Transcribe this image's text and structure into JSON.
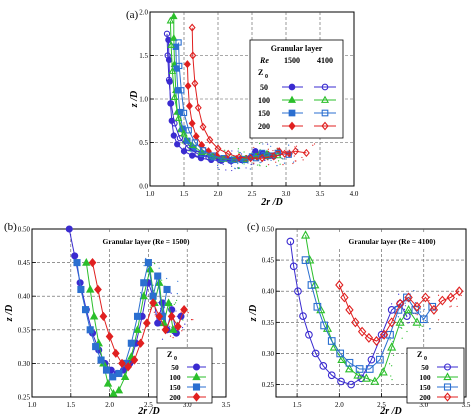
{
  "chart_data": [
    {
      "panel": "(a)",
      "type": "line",
      "xlabel": "2r /D",
      "ylabel": "z /D",
      "xlim": [
        1.0,
        4.0
      ],
      "ylim": [
        0.0,
        2.0
      ],
      "xticks": [
        "1.0",
        "1.5",
        "2.0",
        "2.5",
        "3.0",
        "3.5",
        "4.0"
      ],
      "yticks": [
        "0.0",
        "0.5",
        "1.0",
        "1.5",
        "2.0"
      ],
      "grid": true,
      "legend": {
        "placement": "top-right",
        "title": "Granular layer",
        "header_re": "Re",
        "col1": "1500",
        "col2": "4100",
        "header_z": "Z",
        "header_z_sub": "0",
        "rows": [
          "50",
          "100",
          "150",
          "200"
        ]
      },
      "series": [
        {
          "name": "50",
          "group": "1500",
          "color": "#3a2bd0",
          "marker": "circle",
          "filled": true,
          "x": [
            1.27,
            1.28,
            1.29,
            1.3,
            1.32,
            1.35,
            1.4,
            1.5,
            1.62,
            1.75,
            1.9,
            2.05,
            2.2,
            2.35,
            2.48,
            2.55,
            2.65
          ],
          "y": [
            1.68,
            1.45,
            1.2,
            0.95,
            0.75,
            0.58,
            0.48,
            0.4,
            0.35,
            0.32,
            0.3,
            0.29,
            0.29,
            0.3,
            0.33,
            0.4,
            0.36
          ]
        },
        {
          "name": "100",
          "group": "1500",
          "color": "#2bbf2b",
          "marker": "triangle",
          "filled": true,
          "x": [
            1.35,
            1.35,
            1.36,
            1.38,
            1.4,
            1.45,
            1.52,
            1.62,
            1.75,
            1.9,
            2.05,
            2.2,
            2.35,
            2.5,
            2.62,
            2.72
          ],
          "y": [
            1.95,
            1.7,
            1.4,
            1.1,
            0.85,
            0.65,
            0.52,
            0.43,
            0.37,
            0.33,
            0.31,
            0.3,
            0.31,
            0.34,
            0.38,
            0.34
          ]
        },
        {
          "name": "150",
          "group": "1500",
          "color": "#2b6fd0",
          "marker": "square",
          "filled": true,
          "x": [
            1.38,
            1.39,
            1.41,
            1.44,
            1.48,
            1.55,
            1.64,
            1.76,
            1.9,
            2.05,
            2.2,
            2.35,
            2.5,
            2.65,
            2.8
          ],
          "y": [
            1.6,
            1.35,
            1.1,
            0.85,
            0.66,
            0.52,
            0.43,
            0.37,
            0.33,
            0.31,
            0.3,
            0.31,
            0.34,
            0.38,
            0.35
          ]
        },
        {
          "name": "200",
          "group": "1500",
          "color": "#e02020",
          "marker": "diamond",
          "filled": true,
          "x": [
            1.55,
            1.56,
            1.58,
            1.62,
            1.68,
            1.76,
            1.86,
            1.98,
            2.12,
            2.27,
            2.42,
            2.58,
            2.74,
            2.9,
            3.05
          ],
          "y": [
            1.4,
            1.15,
            0.92,
            0.72,
            0.57,
            0.47,
            0.4,
            0.35,
            0.32,
            0.31,
            0.31,
            0.33,
            0.36,
            0.4,
            0.37
          ]
        },
        {
          "name": "50",
          "group": "4100",
          "color": "#3a2bd0",
          "marker": "circle",
          "filled": false,
          "x": [
            1.25,
            1.26,
            1.28,
            1.31,
            1.36,
            1.44,
            1.56,
            1.7,
            1.86,
            2.02,
            2.18,
            2.34,
            2.5,
            2.66,
            2.82
          ],
          "y": [
            1.75,
            1.5,
            1.22,
            0.95,
            0.72,
            0.55,
            0.44,
            0.37,
            0.33,
            0.3,
            0.29,
            0.3,
            0.33,
            0.37,
            0.34
          ]
        },
        {
          "name": "100",
          "group": "4100",
          "color": "#2bbf2b",
          "marker": "triangle",
          "filled": false,
          "x": [
            1.3,
            1.31,
            1.33,
            1.36,
            1.42,
            1.5,
            1.62,
            1.76,
            1.92,
            2.08,
            2.24,
            2.4,
            2.56,
            2.72,
            2.88
          ],
          "y": [
            1.9,
            1.62,
            1.32,
            1.02,
            0.78,
            0.6,
            0.47,
            0.39,
            0.34,
            0.31,
            0.3,
            0.31,
            0.34,
            0.37,
            0.35
          ]
        },
        {
          "name": "150",
          "group": "4100",
          "color": "#2b6fd0",
          "marker": "square",
          "filled": false,
          "x": [
            1.42,
            1.43,
            1.46,
            1.5,
            1.57,
            1.66,
            1.78,
            1.92,
            2.08,
            2.24,
            2.4,
            2.56,
            2.72,
            2.88,
            3.04
          ],
          "y": [
            1.65,
            1.38,
            1.1,
            0.84,
            0.64,
            0.5,
            0.41,
            0.35,
            0.32,
            0.3,
            0.3,
            0.32,
            0.35,
            0.38,
            0.36
          ]
        },
        {
          "name": "200",
          "group": "4100",
          "color": "#e02020",
          "marker": "diamond",
          "filled": false,
          "x": [
            1.62,
            1.63,
            1.66,
            1.71,
            1.78,
            1.88,
            2.0,
            2.15,
            2.31,
            2.48,
            2.65,
            2.82,
            2.98,
            3.14,
            3.3
          ],
          "y": [
            1.82,
            1.5,
            1.18,
            0.9,
            0.68,
            0.53,
            0.43,
            0.37,
            0.33,
            0.32,
            0.32,
            0.34,
            0.37,
            0.4,
            0.38
          ]
        }
      ]
    },
    {
      "panel": "(b)",
      "type": "line",
      "title": "Granular layer (Re = 1500)",
      "xlabel": "2r /D",
      "ylabel": "z /D",
      "xlim": [
        1.0,
        3.5
      ],
      "ylim": [
        0.25,
        0.5
      ],
      "xticks": [
        "1.0",
        "1.5",
        "2.0",
        "2.5",
        "3.0",
        "3.5"
      ],
      "yticks": [
        "0.25",
        "0.30",
        "0.35",
        "0.40",
        "0.45",
        "0.50"
      ],
      "grid": true,
      "legend": {
        "placement": "bottom-right",
        "header_z": "Z",
        "header_z_sub": "0",
        "rows": [
          "50",
          "100",
          "150",
          "200"
        ]
      },
      "series": [
        {
          "name": "50",
          "color": "#3a2bd0",
          "marker": "circle",
          "filled": true,
          "x": [
            1.48,
            1.55,
            1.62,
            1.7,
            1.78,
            1.86,
            1.94,
            2.02,
            2.1,
            2.18,
            2.26,
            2.34,
            2.42,
            2.5,
            2.56,
            2.62,
            2.68,
            2.74,
            2.8,
            2.86,
            2.92
          ],
          "y": [
            0.5,
            0.46,
            0.42,
            0.38,
            0.345,
            0.32,
            0.3,
            0.29,
            0.285,
            0.29,
            0.3,
            0.33,
            0.37,
            0.42,
            0.4,
            0.36,
            0.39,
            0.35,
            0.38,
            0.345,
            0.37
          ]
        },
        {
          "name": "100",
          "color": "#2bbf2b",
          "marker": "triangle",
          "filled": true,
          "x": [
            1.7,
            1.75,
            1.8,
            1.86,
            1.92,
            1.98,
            2.05,
            2.12,
            2.2,
            2.28,
            2.36,
            2.44,
            2.52,
            2.58,
            2.64,
            2.7,
            2.76,
            2.82
          ],
          "y": [
            0.45,
            0.41,
            0.37,
            0.33,
            0.3,
            0.27,
            0.255,
            0.26,
            0.28,
            0.31,
            0.35,
            0.4,
            0.44,
            0.39,
            0.42,
            0.36,
            0.39,
            0.35
          ]
        },
        {
          "name": "150",
          "color": "#2b6fd0",
          "marker": "square",
          "filled": true,
          "x": [
            1.58,
            1.63,
            1.69,
            1.75,
            1.82,
            1.89,
            1.96,
            2.04,
            2.12,
            2.2,
            2.28,
            2.36,
            2.44,
            2.5,
            2.56,
            2.62,
            2.68,
            2.74
          ],
          "y": [
            0.45,
            0.41,
            0.38,
            0.35,
            0.325,
            0.305,
            0.29,
            0.28,
            0.285,
            0.3,
            0.33,
            0.37,
            0.42,
            0.45,
            0.4,
            0.43,
            0.37,
            0.41
          ]
        },
        {
          "name": "200",
          "color": "#e02020",
          "marker": "diamond",
          "filled": true,
          "x": [
            1.78,
            1.85,
            1.92,
            2.0,
            2.08,
            2.16,
            2.24,
            2.32,
            2.4,
            2.48,
            2.56,
            2.64,
            2.72,
            2.8,
            2.88,
            2.96
          ],
          "y": [
            0.45,
            0.41,
            0.37,
            0.34,
            0.315,
            0.3,
            0.295,
            0.305,
            0.33,
            0.36,
            0.39,
            0.37,
            0.35,
            0.37,
            0.355,
            0.38
          ]
        }
      ]
    },
    {
      "panel": "(c)",
      "type": "line",
      "title": "Granular layer (Re = 4100)",
      "xlabel": "2r /D",
      "ylabel": "z /D",
      "xlim": [
        1.25,
        3.5
      ],
      "ylim": [
        0.23,
        0.5
      ],
      "xticks": [
        "1.5",
        "2.0",
        "2.5",
        "3.0",
        "3.5"
      ],
      "yticks": [
        "0.25",
        "0.30",
        "0.35",
        "0.40",
        "0.45",
        "0.50"
      ],
      "grid": true,
      "legend": {
        "placement": "bottom-right",
        "header_z": "Z",
        "header_z_sub": "0",
        "rows": [
          "50",
          "100",
          "150",
          "200"
        ]
      },
      "series": [
        {
          "name": "50",
          "color": "#3a2bd0",
          "marker": "circle",
          "filled": false,
          "x": [
            1.42,
            1.46,
            1.51,
            1.57,
            1.64,
            1.72,
            1.81,
            1.91,
            2.02,
            2.14,
            2.26,
            2.38,
            2.5,
            2.62,
            2.72,
            2.8
          ],
          "y": [
            0.48,
            0.44,
            0.4,
            0.36,
            0.33,
            0.3,
            0.28,
            0.265,
            0.255,
            0.25,
            0.26,
            0.29,
            0.33,
            0.37,
            0.38,
            0.36
          ]
        },
        {
          "name": "100",
          "color": "#2bbf2b",
          "marker": "triangle",
          "filled": false,
          "x": [
            1.6,
            1.65,
            1.71,
            1.78,
            1.86,
            1.94,
            2.03,
            2.12,
            2.22,
            2.32,
            2.42,
            2.52,
            2.62,
            2.72,
            2.82,
            2.92
          ],
          "y": [
            0.49,
            0.45,
            0.41,
            0.37,
            0.34,
            0.31,
            0.29,
            0.275,
            0.265,
            0.26,
            0.255,
            0.27,
            0.31,
            0.35,
            0.37,
            0.35
          ]
        },
        {
          "name": "150",
          "color": "#2b6fd0",
          "marker": "square",
          "filled": false,
          "x": [
            1.6,
            1.67,
            1.74,
            1.82,
            1.91,
            2.01,
            2.12,
            2.24,
            2.36,
            2.48,
            2.6,
            2.7,
            2.8,
            2.9,
            3.0,
            3.1
          ],
          "y": [
            0.45,
            0.41,
            0.375,
            0.345,
            0.32,
            0.3,
            0.285,
            0.275,
            0.275,
            0.29,
            0.33,
            0.37,
            0.39,
            0.37,
            0.355,
            0.375
          ]
        },
        {
          "name": "200",
          "color": "#e02020",
          "marker": "diamond",
          "filled": false,
          "x": [
            2.0,
            2.06,
            2.12,
            2.19,
            2.27,
            2.35,
            2.44,
            2.53,
            2.62,
            2.72,
            2.82,
            2.92,
            3.02,
            3.12,
            3.22,
            3.32,
            3.42
          ],
          "y": [
            0.41,
            0.39,
            0.37,
            0.35,
            0.335,
            0.325,
            0.32,
            0.33,
            0.35,
            0.38,
            0.39,
            0.375,
            0.39,
            0.37,
            0.385,
            0.39,
            0.4
          ]
        }
      ]
    }
  ]
}
